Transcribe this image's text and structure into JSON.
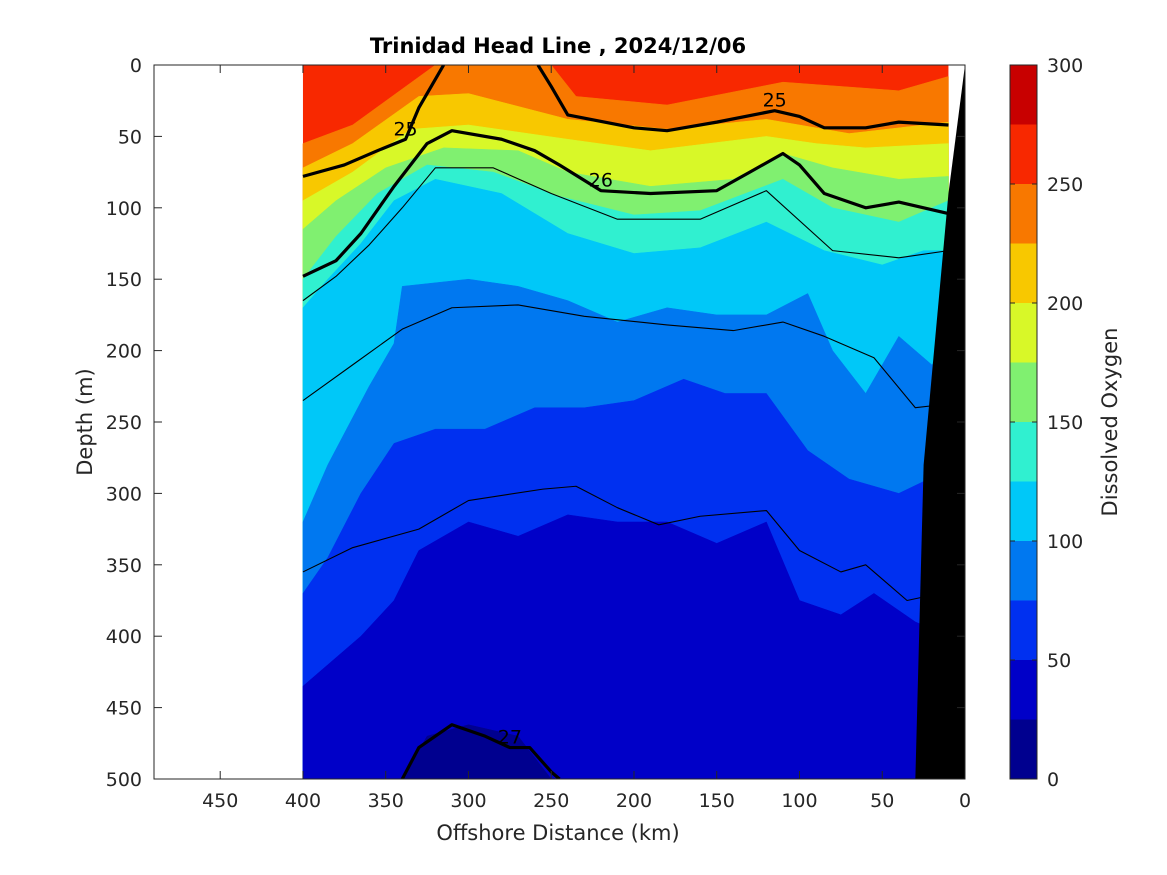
{
  "chart_data": {
    "type": "heatmap",
    "title": "Trinidad Head Line , 2024/12/06",
    "xlabel": "Offshore Distance (km)",
    "ylabel": "Depth (m)",
    "xlim": [
      490,
      0
    ],
    "ylim": [
      0,
      500
    ],
    "x_ticks": [
      450,
      400,
      350,
      300,
      250,
      200,
      150,
      100,
      50,
      0
    ],
    "y_ticks": [
      0,
      50,
      100,
      150,
      200,
      250,
      300,
      350,
      400,
      450,
      500
    ],
    "data_x_range": [
      400,
      10
    ],
    "grid": false,
    "colorbar": {
      "label": "Dissolved Oxygen",
      "ticks": [
        0,
        50,
        100,
        150,
        200,
        250,
        300
      ],
      "levels": [
        0,
        25,
        50,
        75,
        100,
        125,
        150,
        175,
        200,
        225,
        250,
        275,
        300
      ],
      "colors": [
        "#00008f",
        "#0000c8",
        "#0030f0",
        "#0078f0",
        "#00c8f8",
        "#30f0d0",
        "#80f070",
        "#d8f828",
        "#f8c800",
        "#f87800",
        "#f82800",
        "#c80000"
      ]
    },
    "oxygen_bands": [
      {
        "value": 260,
        "boundary": [
          [
            400,
            0
          ],
          [
            400,
            0
          ]
        ]
      },
      {
        "value": 240,
        "boundary": [
          [
            400,
            55
          ],
          [
            370,
            42
          ],
          [
            320,
            0
          ],
          [
            250,
            0
          ],
          [
            235,
            22
          ],
          [
            180,
            28
          ],
          [
            110,
            12
          ],
          [
            40,
            18
          ],
          [
            10,
            8
          ]
        ]
      },
      {
        "value": 215,
        "boundary": [
          [
            400,
            72
          ],
          [
            370,
            55
          ],
          [
            330,
            22
          ],
          [
            300,
            20
          ],
          [
            240,
            38
          ],
          [
            180,
            45
          ],
          [
            120,
            38
          ],
          [
            70,
            48
          ],
          [
            10,
            40
          ]
        ]
      },
      {
        "value": 190,
        "boundary": [
          [
            400,
            95
          ],
          [
            370,
            75
          ],
          [
            335,
            45
          ],
          [
            300,
            42
          ],
          [
            240,
            52
          ],
          [
            190,
            60
          ],
          [
            120,
            50
          ],
          [
            90,
            55
          ],
          [
            60,
            58
          ],
          [
            10,
            55
          ]
        ]
      },
      {
        "value": 165,
        "boundary": [
          [
            400,
            115
          ],
          [
            380,
            95
          ],
          [
            350,
            72
          ],
          [
            315,
            58
          ],
          [
            270,
            60
          ],
          [
            240,
            75
          ],
          [
            190,
            85
          ],
          [
            140,
            80
          ],
          [
            110,
            62
          ],
          [
            80,
            72
          ],
          [
            40,
            80
          ],
          [
            10,
            78
          ]
        ]
      },
      {
        "value": 140,
        "boundary": [
          [
            400,
            150
          ],
          [
            380,
            120
          ],
          [
            355,
            90
          ],
          [
            325,
            70
          ],
          [
            285,
            75
          ],
          [
            245,
            92
          ],
          [
            200,
            105
          ],
          [
            160,
            102
          ],
          [
            110,
            80
          ],
          [
            80,
            100
          ],
          [
            40,
            110
          ],
          [
            10,
            95
          ]
        ]
      },
      {
        "value": 115,
        "boundary": [
          [
            400,
            170
          ],
          [
            385,
            150
          ],
          [
            365,
            125
          ],
          [
            345,
            95
          ],
          [
            320,
            80
          ],
          [
            280,
            90
          ],
          [
            240,
            118
          ],
          [
            200,
            132
          ],
          [
            160,
            128
          ],
          [
            120,
            110
          ],
          [
            85,
            130
          ],
          [
            50,
            140
          ],
          [
            25,
            130
          ],
          [
            10,
            130
          ]
        ]
      },
      {
        "value": 90,
        "boundary": [
          [
            400,
            320
          ],
          [
            385,
            280
          ],
          [
            360,
            225
          ],
          [
            345,
            195
          ],
          [
            340,
            155
          ],
          [
            300,
            150
          ],
          [
            270,
            155
          ],
          [
            240,
            165
          ],
          [
            210,
            180
          ],
          [
            180,
            170
          ],
          [
            150,
            175
          ],
          [
            120,
            175
          ],
          [
            95,
            160
          ],
          [
            80,
            200
          ],
          [
            60,
            230
          ],
          [
            40,
            190
          ],
          [
            20,
            210
          ],
          [
            12,
            200
          ]
        ]
      },
      {
        "value": 65,
        "boundary": [
          [
            400,
            370
          ],
          [
            385,
            345
          ],
          [
            365,
            300
          ],
          [
            345,
            265
          ],
          [
            320,
            255
          ],
          [
            290,
            255
          ],
          [
            260,
            240
          ],
          [
            230,
            240
          ],
          [
            200,
            235
          ],
          [
            170,
            220
          ],
          [
            145,
            230
          ],
          [
            120,
            230
          ],
          [
            95,
            270
          ],
          [
            70,
            290
          ],
          [
            40,
            300
          ],
          [
            22,
            290
          ]
        ]
      },
      {
        "value": 40,
        "boundary": [
          [
            400,
            435
          ],
          [
            385,
            420
          ],
          [
            365,
            400
          ],
          [
            345,
            375
          ],
          [
            330,
            340
          ],
          [
            300,
            320
          ],
          [
            270,
            330
          ],
          [
            240,
            315
          ],
          [
            210,
            320
          ],
          [
            180,
            320
          ],
          [
            150,
            335
          ],
          [
            120,
            320
          ],
          [
            100,
            375
          ],
          [
            75,
            385
          ],
          [
            55,
            370
          ],
          [
            30,
            390
          ],
          [
            20,
            395
          ]
        ]
      },
      {
        "value": 15,
        "boundary": [
          [
            340,
            500
          ],
          [
            325,
            470
          ],
          [
            300,
            462
          ],
          [
            270,
            470
          ],
          [
            250,
            500
          ]
        ]
      }
    ],
    "density_contours": [
      {
        "label": "25",
        "bold": true,
        "points": [
          [
            400,
            78
          ],
          [
            375,
            70
          ],
          [
            355,
            60
          ],
          [
            338,
            52
          ],
          [
            330,
            30
          ],
          [
            315,
            0
          ]
        ]
      },
      {
        "label": "25",
        "bold": true,
        "points": [
          [
            258,
            0
          ],
          [
            250,
            15
          ],
          [
            240,
            35
          ],
          [
            200,
            44
          ],
          [
            180,
            46
          ],
          [
            150,
            40
          ],
          [
            115,
            32
          ],
          [
            100,
            36
          ],
          [
            85,
            44
          ],
          [
            60,
            44
          ],
          [
            40,
            40
          ],
          [
            10,
            42
          ]
        ]
      },
      {
        "label": "26",
        "bold": true,
        "points": [
          [
            400,
            148
          ],
          [
            380,
            137
          ],
          [
            365,
            118
          ],
          [
            345,
            85
          ],
          [
            325,
            55
          ],
          [
            310,
            46
          ],
          [
            280,
            52
          ],
          [
            260,
            60
          ],
          [
            245,
            70
          ],
          [
            220,
            88
          ],
          [
            190,
            90
          ],
          [
            150,
            88
          ],
          [
            130,
            75
          ],
          [
            110,
            62
          ],
          [
            100,
            70
          ],
          [
            85,
            90
          ],
          [
            60,
            100
          ],
          [
            40,
            96
          ],
          [
            10,
            104
          ]
        ]
      },
      {
        "label": "27",
        "bold": true,
        "points": [
          [
            340,
            500
          ],
          [
            330,
            478
          ],
          [
            310,
            462
          ],
          [
            290,
            470
          ],
          [
            275,
            478
          ],
          [
            263,
            478
          ],
          [
            250,
            495
          ],
          [
            245,
            500
          ]
        ]
      },
      {
        "label": "",
        "bold": false,
        "points": [
          [
            400,
            235
          ],
          [
            370,
            210
          ],
          [
            340,
            185
          ],
          [
            310,
            170
          ],
          [
            270,
            168
          ],
          [
            230,
            176
          ],
          [
            180,
            182
          ],
          [
            140,
            186
          ],
          [
            110,
            180
          ],
          [
            85,
            190
          ],
          [
            55,
            205
          ],
          [
            30,
            240
          ],
          [
            15,
            238
          ]
        ]
      },
      {
        "label": "",
        "bold": false,
        "points": [
          [
            400,
            355
          ],
          [
            370,
            338
          ],
          [
            330,
            325
          ],
          [
            300,
            305
          ],
          [
            255,
            297
          ],
          [
            235,
            295
          ],
          [
            210,
            310
          ],
          [
            185,
            322
          ],
          [
            160,
            316
          ],
          [
            120,
            312
          ],
          [
            100,
            340
          ],
          [
            75,
            355
          ],
          [
            60,
            350
          ],
          [
            35,
            375
          ],
          [
            15,
            370
          ]
        ]
      },
      {
        "label": "",
        "bold": false,
        "points": [
          [
            400,
            165
          ],
          [
            380,
            148
          ],
          [
            360,
            126
          ],
          [
            340,
            100
          ],
          [
            320,
            72
          ],
          [
            285,
            72
          ],
          [
            250,
            90
          ],
          [
            210,
            108
          ],
          [
            160,
            108
          ],
          [
            120,
            88
          ],
          [
            80,
            130
          ],
          [
            40,
            135
          ],
          [
            10,
            130
          ]
        ]
      }
    ],
    "bathymetry": {
      "label": "",
      "points": [
        [
          0,
          0
        ],
        [
          10,
          90
        ],
        [
          25,
          280
        ],
        [
          30,
          500
        ],
        [
          0,
          500
        ]
      ]
    }
  }
}
